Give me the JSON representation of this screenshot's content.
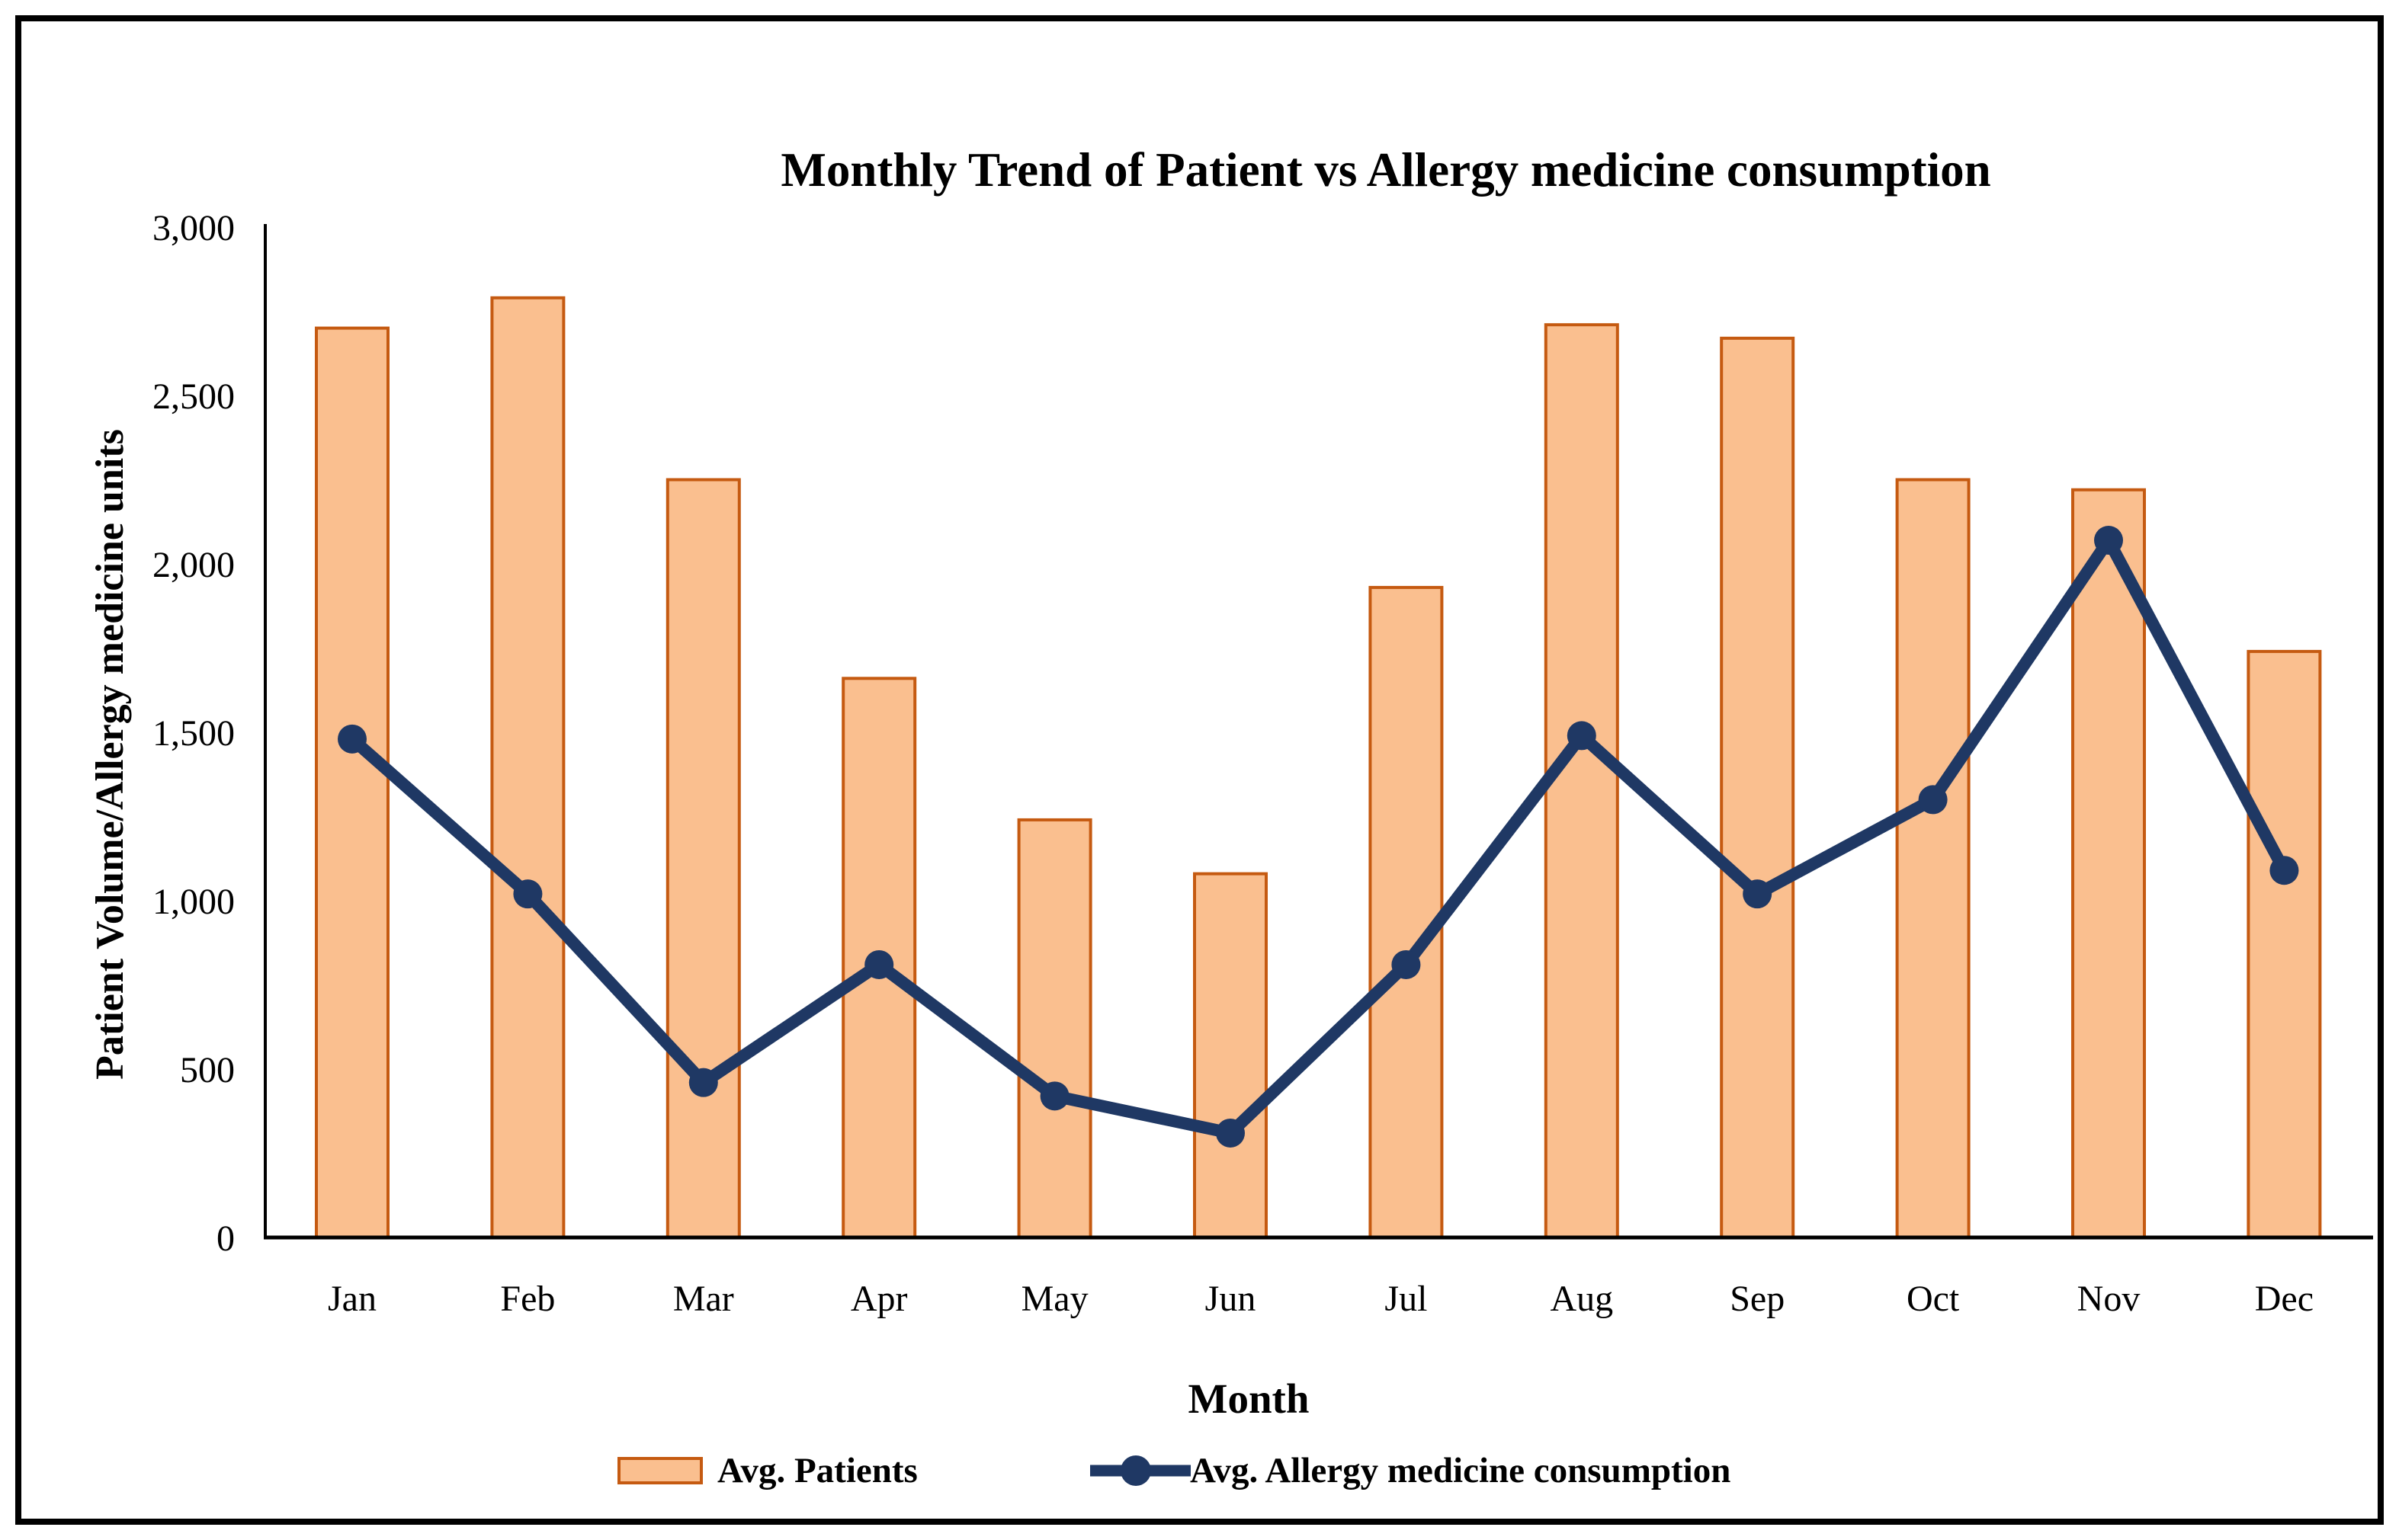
{
  "chart_data": {
    "type": "bar+line combo",
    "title": "Monthly Trend of Patient vs Allergy medicine consumption",
    "xlabel": "Month",
    "ylabel": "Patient Volume/Allergy medicine units",
    "categories": [
      "Jan",
      "Feb",
      "Mar",
      "Apr",
      "May",
      "Jun",
      "Jul",
      "Aug",
      "Sep",
      "Oct",
      "Nov",
      "Dec"
    ],
    "series": [
      {
        "name": "Avg. Patients",
        "type": "bar",
        "fill_color": "#FABF8F",
        "border_color": "#C55A11",
        "values": [
          2700,
          2790,
          2250,
          1660,
          1240,
          1080,
          1930,
          2710,
          2670,
          2250,
          2220,
          1740
        ]
      },
      {
        "name": "Avg. Allergy medicine consumption",
        "type": "line",
        "color": "#1F3864",
        "marker": "circle",
        "values": [
          1480,
          1020,
          460,
          810,
          420,
          310,
          810,
          1490,
          1020,
          1300,
          2070,
          1090
        ]
      }
    ],
    "y_axis": {
      "min": 0,
      "max": 3000,
      "tick_step": 500,
      "tick_labels": [
        "0",
        "500",
        "1,000",
        "1,500",
        "2,000",
        "2,500",
        "3,000"
      ]
    },
    "axis_color": "#000000",
    "grid": "off",
    "legend_position": "bottom"
  }
}
